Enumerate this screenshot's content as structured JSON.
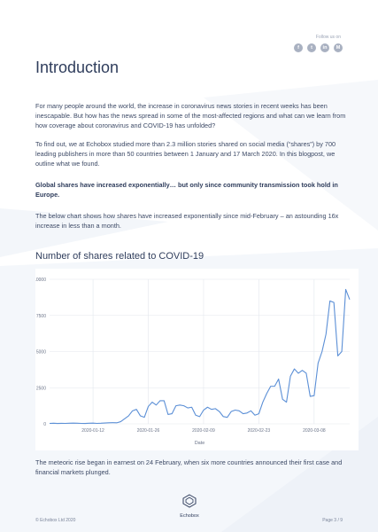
{
  "header": {
    "follow_label": "Follow us on",
    "socials": [
      {
        "icon": "facebook-icon",
        "glyph": "f"
      },
      {
        "icon": "twitter-icon",
        "glyph": "t"
      },
      {
        "icon": "linkedin-icon",
        "glyph": "in"
      },
      {
        "icon": "medium-icon",
        "glyph": "M"
      }
    ]
  },
  "article": {
    "title": "Introduction",
    "p1": "For many people around the world, the increase in coronavirus news stories in recent weeks has been inescapable. But how has the news spread in some of the most-affected regions and what can we learn from how coverage about coronavirus and COVID-19 has unfolded?",
    "p2": "To find out, we at Echobox studied more than 2.3 million stories shared on social media (“shares”) by 700 leading publishers in more than 50 countries between 1 January and 17 March 2020. In this blogpost, we outline what we found.",
    "heading": "Global shares have increased exponentially… but only since community transmission took hold in Europe.",
    "p3": "The below chart shows how shares have increased exponentially since mid-February – an astounding 16x increase in less than a month.",
    "chart_title": "Number of shares related to COVID-19",
    "p4": "The meteoric rise began in earnest on 24 February, when six more countries announced their first case and financial markets plunged."
  },
  "chart_data": {
    "type": "line",
    "xlabel": "Date",
    "ylabel": "",
    "ylim": [
      0,
      10000
    ],
    "yticks": [
      0,
      2500,
      5000,
      7500,
      10000
    ],
    "xticks": [
      "2020-01-12",
      "2020-01-26",
      "2020-02-09",
      "2020-02-23",
      "2020-03-08"
    ],
    "x": [
      "2020-01-01",
      "2020-01-02",
      "2020-01-03",
      "2020-01-04",
      "2020-01-05",
      "2020-01-06",
      "2020-01-07",
      "2020-01-08",
      "2020-01-09",
      "2020-01-10",
      "2020-01-11",
      "2020-01-12",
      "2020-01-13",
      "2020-01-14",
      "2020-01-15",
      "2020-01-16",
      "2020-01-17",
      "2020-01-18",
      "2020-01-19",
      "2020-01-20",
      "2020-01-21",
      "2020-01-22",
      "2020-01-23",
      "2020-01-24",
      "2020-01-25",
      "2020-01-26",
      "2020-01-27",
      "2020-01-28",
      "2020-01-29",
      "2020-01-30",
      "2020-01-31",
      "2020-02-01",
      "2020-02-02",
      "2020-02-03",
      "2020-02-04",
      "2020-02-05",
      "2020-02-06",
      "2020-02-07",
      "2020-02-08",
      "2020-02-09",
      "2020-02-10",
      "2020-02-11",
      "2020-02-12",
      "2020-02-13",
      "2020-02-14",
      "2020-02-15",
      "2020-02-16",
      "2020-02-17",
      "2020-02-18",
      "2020-02-19",
      "2020-02-20",
      "2020-02-21",
      "2020-02-22",
      "2020-02-23",
      "2020-02-24",
      "2020-02-25",
      "2020-02-26",
      "2020-02-27",
      "2020-02-28",
      "2020-02-29",
      "2020-03-01",
      "2020-03-02",
      "2020-03-03",
      "2020-03-04",
      "2020-03-05",
      "2020-03-06",
      "2020-03-07",
      "2020-03-08",
      "2020-03-09",
      "2020-03-10",
      "2020-03-11",
      "2020-03-12",
      "2020-03-13",
      "2020-03-14",
      "2020-03-15",
      "2020-03-16",
      "2020-03-17"
    ],
    "values": [
      30,
      40,
      25,
      35,
      30,
      40,
      50,
      45,
      30,
      25,
      40,
      50,
      30,
      40,
      60,
      70,
      80,
      70,
      150,
      350,
      550,
      900,
      1000,
      550,
      450,
      1200,
      1500,
      1300,
      1600,
      1600,
      650,
      700,
      1250,
      1300,
      1250,
      1100,
      1150,
      600,
      500,
      950,
      1150,
      1000,
      1050,
      850,
      500,
      450,
      850,
      950,
      900,
      700,
      750,
      900,
      600,
      700,
      1500,
      2100,
      2600,
      2600,
      3100,
      1700,
      1500,
      3300,
      3800,
      3500,
      3700,
      3500,
      1900,
      1950,
      4200,
      5000,
      6200,
      8500,
      8400,
      4700,
      5000,
      9300,
      8600
    ],
    "grid": true,
    "legend": "none",
    "color": "#5b8fd6"
  },
  "footer": {
    "logo_text": "Echobox",
    "copyright": "© Echobox Ltd 2020",
    "page": "Page 3 / 9"
  }
}
